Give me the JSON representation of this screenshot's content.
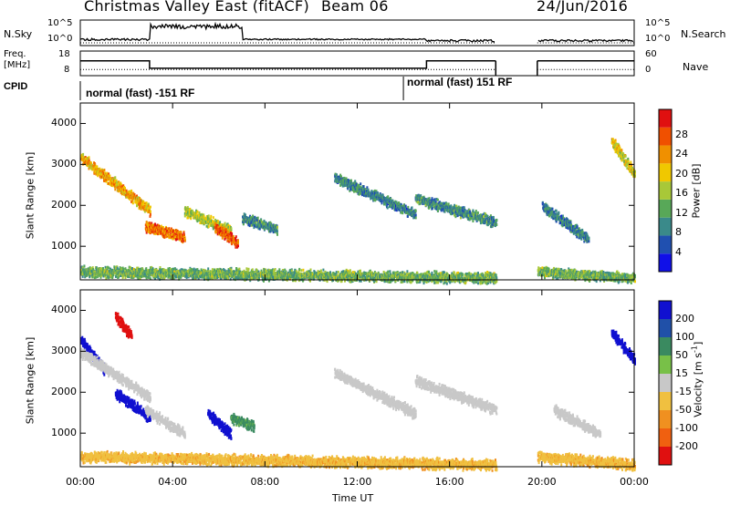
{
  "header": {
    "title": "Christmas Valley East (fitACF)",
    "beam": "Beam 06",
    "date": "24/Jun/2016"
  },
  "panels": {
    "nsky_label": "N.Sky",
    "nsky_ticks": [
      "10^5",
      "10^0"
    ],
    "nsearch_ticks": [
      "10^5",
      "10^0"
    ],
    "nsearch_label": "N.Search",
    "freq_label_1": "Freq.",
    "freq_label_2": "[MHz]",
    "freq_ticks": [
      "18",
      "8"
    ],
    "nave_ticks": [
      "60",
      "0"
    ],
    "nave_label": "Nave",
    "cpid_label": "CPID",
    "cpid_1": "normal (fast) -151 RF",
    "cpid_2": "normal (fast) 151 RF"
  },
  "axes": {
    "ylabel": "Slant Range [km]",
    "xlabel": "Time UT",
    "x_ticks": [
      "00:00",
      "04:00",
      "08:00",
      "12:00",
      "16:00",
      "20:00",
      "00:00"
    ],
    "y_ticks": [
      "1000",
      "2000",
      "3000",
      "4000"
    ]
  },
  "power_scale": {
    "label": "Power [dB]",
    "ticks": [
      "4",
      "8",
      "12",
      "16",
      "20",
      "24",
      "28"
    ],
    "colors": [
      "#1010e8",
      "#2050b0",
      "#3a8a8a",
      "#58a858",
      "#a8c838",
      "#f0c800",
      "#f09000",
      "#f05000",
      "#e01010"
    ]
  },
  "velocity_scale": {
    "label_main": "Velocity [m s",
    "label_sup": "-1",
    "label_end": "]",
    "ticks": [
      "200",
      "100",
      "50",
      "15",
      "-15",
      "-50",
      "-100",
      "-200"
    ],
    "colors": [
      "#1010d0",
      "#2050a8",
      "#3a8a60",
      "#78c048",
      "#c8c8c8",
      "#f0c040",
      "#f09020",
      "#f06010",
      "#e01010"
    ]
  },
  "chart_data": [
    {
      "type": "heatmap",
      "title": "Power",
      "xlabel": "Time UT",
      "ylabel": "Slant Range [km]",
      "xlim": [
        0,
        24
      ],
      "ylim": [
        180,
        4500
      ],
      "colorbar": "Power [dB]",
      "cmin": 0,
      "cmax": 30,
      "features": [
        {
          "t0": 0.0,
          "t1": 3.0,
          "r0": 3200,
          "r1": 1900,
          "power": 20
        },
        {
          "t0": 2.8,
          "t1": 4.5,
          "r0": 1500,
          "r1": 1250,
          "power": 23
        },
        {
          "t0": 4.5,
          "t1": 6.5,
          "r0": 1900,
          "r1": 1400,
          "power": 15
        },
        {
          "t0": 5.8,
          "t1": 6.8,
          "r0": 1500,
          "r1": 1100,
          "power": 25
        },
        {
          "t0": 7.0,
          "t1": 8.5,
          "r0": 1700,
          "r1": 1450,
          "power": 9
        },
        {
          "t0": 11.0,
          "t1": 14.5,
          "r0": 2700,
          "r1": 1800,
          "power": 8
        },
        {
          "t0": 14.5,
          "t1": 18.0,
          "r0": 2200,
          "r1": 1600,
          "power": 9
        },
        {
          "t0": 20.0,
          "t1": 22.0,
          "r0": 2000,
          "r1": 1200,
          "power": 8
        },
        {
          "t0": 23.0,
          "t1": 24.0,
          "r0": 3600,
          "r1": 2800,
          "power": 17
        },
        {
          "t0": 0.0,
          "t1": 18.0,
          "r0": 400,
          "r1": 250,
          "power": 12
        },
        {
          "t0": 19.8,
          "t1": 24.0,
          "r0": 400,
          "r1": 250,
          "power": 12
        }
      ]
    },
    {
      "type": "heatmap",
      "title": "Velocity",
      "xlabel": "Time UT",
      "ylabel": "Slant Range [km]",
      "xlim": [
        0,
        24
      ],
      "ylim": [
        180,
        4500
      ],
      "colorbar": "Velocity [m s-1]",
      "cmin": -250,
      "cmax": 250,
      "features": [
        {
          "t0": 0.0,
          "t1": 1.0,
          "r0": 3300,
          "r1": 2600,
          "velocity": 220
        },
        {
          "t0": 0.0,
          "t1": 3.0,
          "r0": 3000,
          "r1": 1900,
          "velocity": 0
        },
        {
          "t0": 1.5,
          "t1": 2.2,
          "r0": 3900,
          "r1": 3400,
          "velocity": -220
        },
        {
          "t0": 1.5,
          "t1": 3.0,
          "r0": 2000,
          "r1": 1400,
          "velocity": 220
        },
        {
          "t0": 2.8,
          "t1": 4.5,
          "r0": 1600,
          "r1": 1000,
          "velocity": 0
        },
        {
          "t0": 5.5,
          "t1": 6.5,
          "r0": 1500,
          "r1": 1000,
          "velocity": 220
        },
        {
          "t0": 6.5,
          "t1": 7.5,
          "r0": 1400,
          "r1": 1200,
          "velocity": 60
        },
        {
          "t0": 11.0,
          "t1": 14.5,
          "r0": 2500,
          "r1": 1500,
          "velocity": 0
        },
        {
          "t0": 14.5,
          "t1": 18.0,
          "r0": 2300,
          "r1": 1600,
          "velocity": 0
        },
        {
          "t0": 20.5,
          "t1": 22.5,
          "r0": 1600,
          "r1": 1000,
          "velocity": 0
        },
        {
          "t0": 23.0,
          "t1": 24.0,
          "r0": 3500,
          "r1": 2800,
          "velocity": 220
        },
        {
          "t0": 0.0,
          "t1": 18.0,
          "r0": 450,
          "r1": 250,
          "velocity": -40
        },
        {
          "t0": 19.8,
          "t1": 24.0,
          "r0": 450,
          "r1": 250,
          "velocity": -40
        }
      ]
    },
    {
      "type": "line",
      "title": "Freq.",
      "ylabel": "[MHz]",
      "ylim": [
        8,
        18
      ],
      "x": [
        0,
        3,
        3,
        15,
        15,
        18,
        19.8,
        24
      ],
      "y": [
        14,
        14,
        11,
        11,
        14,
        14,
        14,
        14
      ]
    }
  ]
}
